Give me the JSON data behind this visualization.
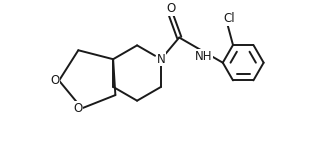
{
  "bg_color": "#ffffff",
  "line_color": "#1a1a1a",
  "line_width": 1.4,
  "font_size_atoms": 8.5,
  "fig_width": 3.32,
  "fig_height": 1.42,
  "dpi": 100,
  "xlim": [
    0,
    10
  ],
  "ylim": [
    0,
    4.3
  ]
}
